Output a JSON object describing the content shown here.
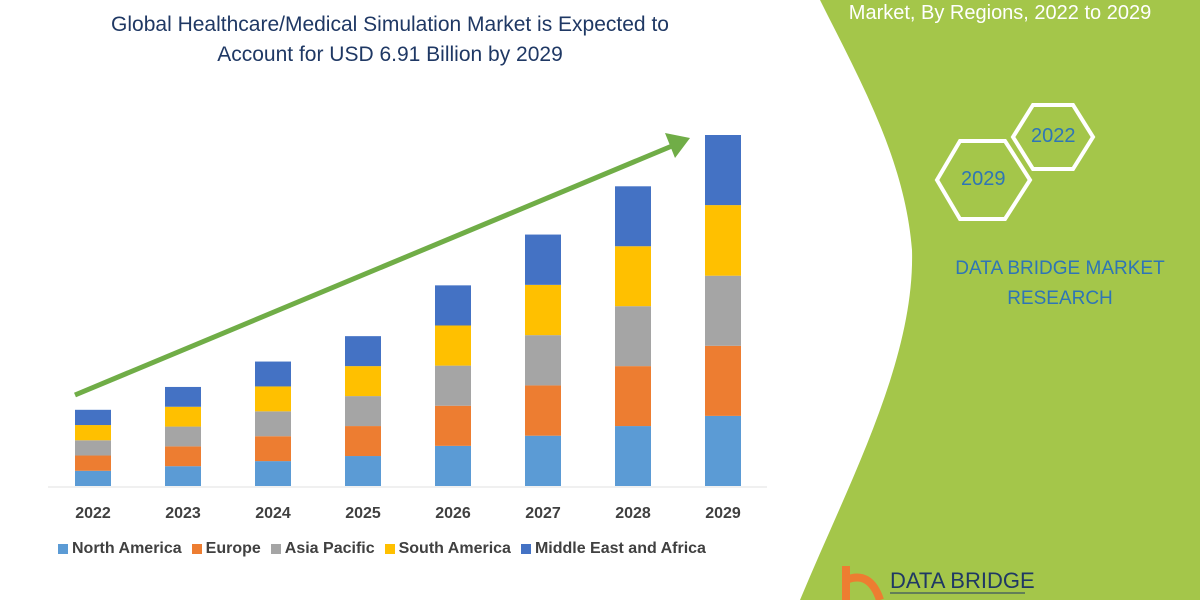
{
  "title": "Global Healthcare/Medical Simulation Market is Expected to Account for USD 6.91 Billion by 2029",
  "title_line1": "Global Healthcare/Medical Simulation Market is Expected to",
  "title_line2": "Account for USD 6.91 Billion by 2029",
  "side_panel": {
    "subtitle": "Market, By Regions, 2022 to 2029",
    "hex_labels": [
      "2022",
      "2029"
    ],
    "brand": "DATA BRIDGE MARKET RESEARCH",
    "logo_text": "DATA BRIDGE",
    "accent_color": "#a4c64a"
  },
  "chart_data": {
    "type": "bar",
    "stacked": true,
    "title": "",
    "xlabel": "",
    "ylabel": "",
    "unit_note": "approximate, scaled so the 2029 total is USD 6.91 Billion",
    "categories": [
      "2022",
      "2023",
      "2024",
      "2025",
      "2026",
      "2027",
      "2028",
      "2029"
    ],
    "series": [
      {
        "name": "North America",
        "color": "#5b9bd5",
        "values": [
          0.3,
          0.39,
          0.49,
          0.59,
          0.79,
          0.99,
          1.18,
          1.38
        ]
      },
      {
        "name": "Europe",
        "color": "#ed7d31",
        "values": [
          0.3,
          0.39,
          0.49,
          0.59,
          0.79,
          0.99,
          1.18,
          1.38
        ]
      },
      {
        "name": "Asia Pacific",
        "color": "#a5a5a5",
        "values": [
          0.3,
          0.39,
          0.49,
          0.59,
          0.79,
          0.99,
          1.18,
          1.38
        ]
      },
      {
        "name": "South America",
        "color": "#ffc000",
        "values": [
          0.3,
          0.39,
          0.49,
          0.59,
          0.79,
          0.99,
          1.18,
          1.39
        ]
      },
      {
        "name": "Middle East and Africa",
        "color": "#4472c4",
        "values": [
          0.3,
          0.39,
          0.49,
          0.59,
          0.79,
          0.99,
          1.18,
          1.38
        ]
      }
    ],
    "ylim": [
      0,
      6.91
    ],
    "grid": false,
    "legend": "bottom",
    "trend_arrow_color": "#70ad47"
  }
}
